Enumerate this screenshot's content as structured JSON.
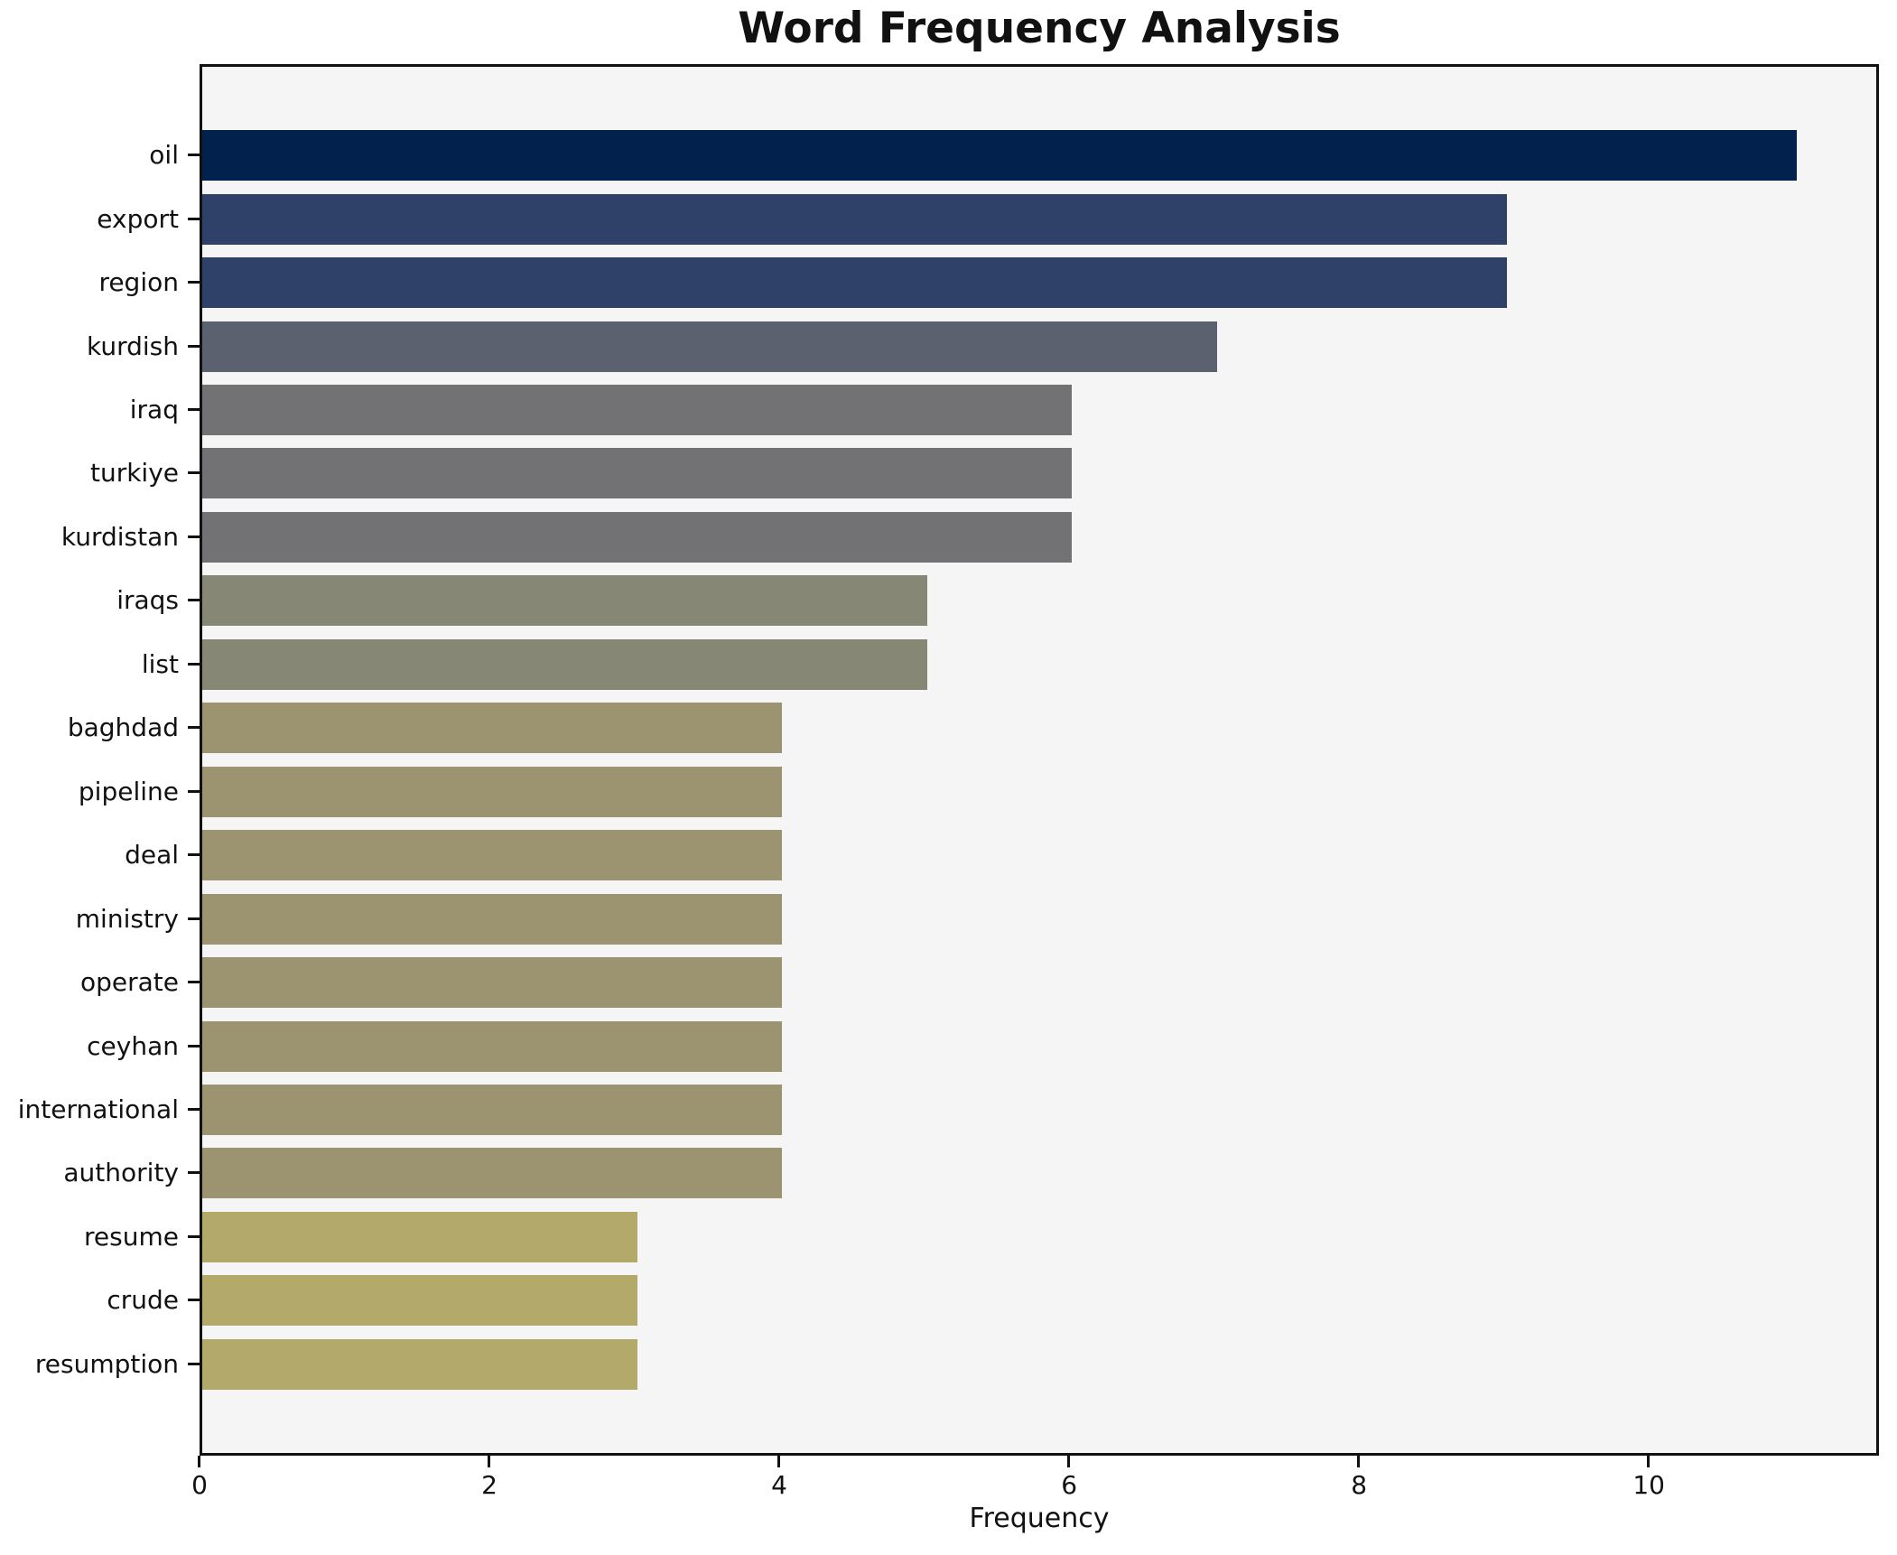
{
  "chart_data": {
    "type": "bar",
    "orientation": "horizontal",
    "title": "Word Frequency Analysis",
    "xlabel": "Frequency",
    "ylabel": "",
    "xlim": [
      0,
      11.55
    ],
    "xticks": [
      "0",
      "2",
      "4",
      "6",
      "8",
      "10"
    ],
    "xtick_values": [
      0,
      2,
      4,
      6,
      8,
      10
    ],
    "grid": false,
    "legend": false,
    "figure_background": "#ffffff",
    "plot_background": "#f5f5f5",
    "spine_color": "#111111",
    "text_color": "#111111",
    "categories": [
      "oil",
      "export",
      "region",
      "kurdish",
      "iraq",
      "turkiye",
      "kurdistan",
      "iraqs",
      "list",
      "baghdad",
      "pipeline",
      "deal",
      "ministry",
      "operate",
      "ceyhan",
      "international",
      "authority",
      "resume",
      "crude",
      "resumption"
    ],
    "values": [
      11,
      9,
      9,
      7,
      6,
      6,
      6,
      5,
      5,
      4,
      4,
      4,
      4,
      4,
      4,
      4,
      4,
      3,
      3,
      3
    ],
    "bar_colors": [
      "#02224d",
      "#2f4168",
      "#2f4168",
      "#5c6170",
      "#727275",
      "#727275",
      "#727275",
      "#878775",
      "#878775",
      "#9c9471",
      "#9c9471",
      "#9c9471",
      "#9c9471",
      "#9c9471",
      "#9c9471",
      "#9c9471",
      "#9c9471",
      "#b3a96b",
      "#b3a96b",
      "#b3a96b"
    ]
  }
}
